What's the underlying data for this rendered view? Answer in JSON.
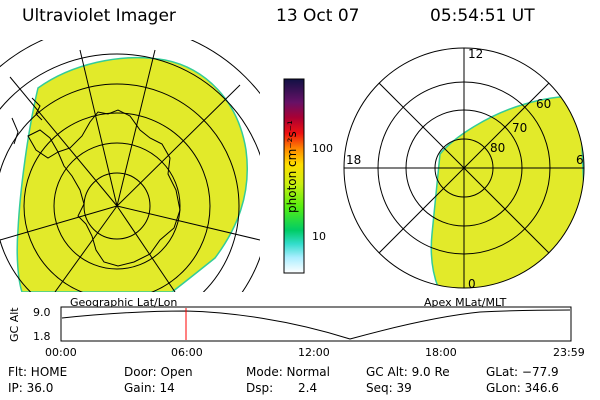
{
  "header": {
    "title": "Ultraviolet Imager",
    "date": "13 Oct 07",
    "time": "05:54:51 UT"
  },
  "colors": {
    "aurora_fill": "#e2ea2a",
    "fill_edge": "#33cc99",
    "marker": "#ff0000"
  },
  "color_bar": {
    "unit_label": "photon cm⁻²s⁻¹",
    "tick_labels": [
      "100",
      "10"
    ]
  },
  "geo_panel": {
    "label": "Geographic Lat/Lon"
  },
  "polar_panel": {
    "label": "Apex MLat/MLT",
    "mlt_labels": [
      "12",
      "18",
      "6",
      "0"
    ],
    "lat_labels": [
      "60",
      "70",
      "80"
    ]
  },
  "altitude_plot": {
    "ylabel": "GC Alt",
    "y_ticks": [
      "9.0",
      "1.8"
    ],
    "x_ticks": [
      "00:00",
      "06:00",
      "12:00",
      "18:00",
      "23:59"
    ],
    "marker_time": "05:54:51"
  },
  "info": {
    "flt": "Flt: HOME",
    "ip": "IP: 36.0",
    "door": "Door: Open",
    "gain": "Gain: 14",
    "mode": "Mode: Normal",
    "dsp_label": "Dsp:",
    "dsp_value": "2.4",
    "gc_alt": "GC Alt: 9.0 Re",
    "seq": "Seq: 39",
    "glat": "GLat: −77.9",
    "glon": "GLon: 346.6"
  }
}
